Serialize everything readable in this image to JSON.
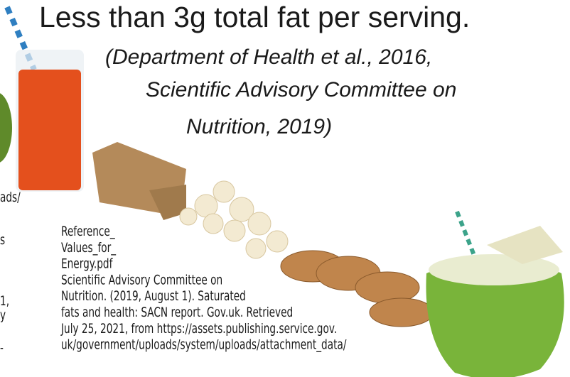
{
  "heading": {
    "title": "Less than 3g total fat per serving.",
    "citation": [
      "(Department of Health et al., 2016,",
      "Scientific Advisory Committee on",
      "Nutrition, 2019)"
    ]
  },
  "references": {
    "lines": [
      "Reference_",
      "Values_for_",
      "Energy.pdf",
      "Scientific Advisory Committee on",
      "Nutrition. (2019, August 1). Saturated",
      "fats and health: SACN report. Gov.uk. Retrieved",
      "July 25, 2021, from https://assets.publishing.service.gov.",
      "uk/government/uploads/system/uploads/attachment_data/"
    ]
  },
  "left_fragments": [
    "ads/",
    "s",
    "1,",
    "y",
    "-"
  ]
}
